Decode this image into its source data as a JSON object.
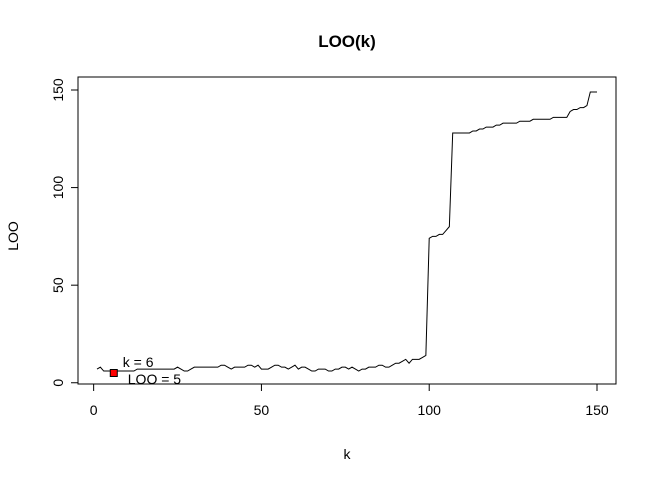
{
  "chart_data": {
    "type": "line",
    "title": "LOO(k)",
    "xlabel": "k",
    "ylabel": "LOO",
    "xlim": [
      1,
      150
    ],
    "ylim": [
      5,
      150
    ],
    "xticks": [
      0,
      50,
      100,
      150
    ],
    "yticks": [
      0,
      50,
      100,
      150
    ],
    "grid": false,
    "line_color": "#000000",
    "highlight_color": "#ff0000",
    "x": [
      1,
      2,
      3,
      4,
      5,
      6,
      7,
      8,
      9,
      10,
      11,
      12,
      13,
      14,
      15,
      16,
      17,
      18,
      19,
      20,
      21,
      22,
      23,
      24,
      25,
      26,
      27,
      28,
      29,
      30,
      31,
      32,
      33,
      34,
      35,
      36,
      37,
      38,
      39,
      40,
      41,
      42,
      43,
      44,
      45,
      46,
      47,
      48,
      49,
      50,
      51,
      52,
      53,
      54,
      55,
      56,
      57,
      58,
      59,
      60,
      61,
      62,
      63,
      64,
      65,
      66,
      67,
      68,
      69,
      70,
      71,
      72,
      73,
      74,
      75,
      76,
      77,
      78,
      79,
      80,
      81,
      82,
      83,
      84,
      85,
      86,
      87,
      88,
      89,
      90,
      91,
      92,
      93,
      94,
      95,
      96,
      97,
      98,
      99,
      100,
      101,
      102,
      103,
      104,
      105,
      106,
      107,
      108,
      109,
      110,
      111,
      112,
      113,
      114,
      115,
      116,
      117,
      118,
      119,
      120,
      121,
      122,
      123,
      124,
      125,
      126,
      127,
      128,
      129,
      130,
      131,
      132,
      133,
      134,
      135,
      136,
      137,
      138,
      139,
      140,
      141,
      142,
      143,
      144,
      145,
      146,
      147,
      148,
      149,
      150
    ],
    "y": [
      7,
      8,
      6,
      6,
      6,
      5,
      6,
      6,
      6,
      6,
      6,
      6,
      7,
      7,
      7,
      7,
      7,
      7,
      7,
      7,
      7,
      7,
      7,
      7,
      8,
      7,
      6,
      6,
      7,
      8,
      8,
      8,
      8,
      8,
      8,
      8,
      8,
      9,
      9,
      8,
      7,
      8,
      8,
      8,
      8,
      9,
      9,
      8,
      9,
      7,
      7,
      7,
      8,
      9,
      9,
      8,
      8,
      7,
      8,
      9,
      7,
      8,
      8,
      7,
      6,
      6,
      7,
      7,
      7,
      6,
      6,
      7,
      7,
      8,
      8,
      7,
      8,
      7,
      6,
      7,
      7,
      8,
      8,
      8,
      9,
      9,
      8,
      8,
      9,
      10,
      10,
      11,
      12,
      10,
      12,
      12,
      12,
      13,
      14,
      74,
      75,
      75,
      76,
      76,
      78,
      80,
      128,
      128,
      128,
      128,
      128,
      128,
      129,
      129,
      130,
      130,
      131,
      131,
      131,
      132,
      132,
      133,
      133,
      133,
      133,
      133,
      134,
      134,
      134,
      134,
      135,
      135,
      135,
      135,
      135,
      135,
      136,
      136,
      136,
      136,
      136,
      139,
      140,
      140,
      141,
      141,
      142,
      149,
      149,
      149
    ],
    "highlight": {
      "k": 6,
      "loo": 5
    },
    "annotations": [
      {
        "text": "k =  6"
      },
      {
        "text": "LOO =  5"
      }
    ]
  }
}
